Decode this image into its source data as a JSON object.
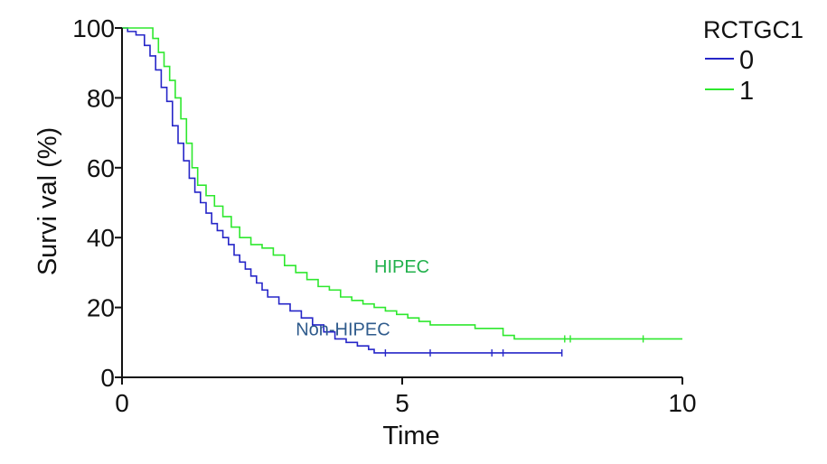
{
  "chart_data": {
    "type": "line",
    "step": true,
    "xlabel": "Time",
    "ylabel": "Survi val (%)",
    "xlim": [
      0,
      10
    ],
    "ylim": [
      0,
      100
    ],
    "x_ticks": [
      0,
      5,
      10
    ],
    "y_ticks": [
      0,
      20,
      40,
      60,
      80,
      100
    ],
    "grid": false,
    "legend": {
      "title": "RCTGC1",
      "position": "top-right",
      "entries": [
        {
          "label": "0",
          "color": "#2626c8"
        },
        {
          "label": "1",
          "color": "#2ee82e"
        }
      ]
    },
    "annotations": [
      {
        "text": "HIPEC",
        "series": "1",
        "color": "#22b14c",
        "x": 4.5,
        "y": 30
      },
      {
        "text": "Non-HIPEC",
        "series": "0",
        "color": "#2f5b8c",
        "x": 3.1,
        "y": 12
      }
    ],
    "series": [
      {
        "name": "0",
        "color": "#2626c8",
        "points": [
          [
            0,
            100
          ],
          [
            0.1,
            99
          ],
          [
            0.25,
            98
          ],
          [
            0.4,
            95
          ],
          [
            0.5,
            92
          ],
          [
            0.6,
            88
          ],
          [
            0.7,
            83
          ],
          [
            0.8,
            79
          ],
          [
            0.9,
            72
          ],
          [
            1.0,
            67
          ],
          [
            1.1,
            62
          ],
          [
            1.2,
            57
          ],
          [
            1.3,
            53
          ],
          [
            1.4,
            50
          ],
          [
            1.5,
            47
          ],
          [
            1.6,
            44
          ],
          [
            1.7,
            42
          ],
          [
            1.8,
            40
          ],
          [
            1.9,
            38
          ],
          [
            2.0,
            35
          ],
          [
            2.1,
            33
          ],
          [
            2.2,
            31
          ],
          [
            2.3,
            29
          ],
          [
            2.4,
            27
          ],
          [
            2.5,
            25
          ],
          [
            2.6,
            23
          ],
          [
            2.8,
            21
          ],
          [
            3.0,
            19
          ],
          [
            3.2,
            17
          ],
          [
            3.4,
            15
          ],
          [
            3.6,
            13
          ],
          [
            3.8,
            11
          ],
          [
            4.0,
            10
          ],
          [
            4.2,
            9
          ],
          [
            4.4,
            8
          ],
          [
            4.5,
            7
          ],
          [
            5.0,
            7
          ],
          [
            6.0,
            7
          ],
          [
            7.0,
            7
          ],
          [
            7.85,
            7
          ]
        ],
        "censor_x": [
          4.7,
          5.5,
          6.6,
          6.8,
          7.85
        ]
      },
      {
        "name": "1",
        "color": "#2ee82e",
        "points": [
          [
            0,
            100
          ],
          [
            0.5,
            100
          ],
          [
            0.55,
            97
          ],
          [
            0.65,
            93
          ],
          [
            0.75,
            89
          ],
          [
            0.85,
            85
          ],
          [
            0.95,
            80
          ],
          [
            1.05,
            74
          ],
          [
            1.15,
            67
          ],
          [
            1.25,
            60
          ],
          [
            1.35,
            55
          ],
          [
            1.5,
            52
          ],
          [
            1.65,
            49
          ],
          [
            1.8,
            46
          ],
          [
            1.95,
            43
          ],
          [
            2.1,
            40
          ],
          [
            2.3,
            38
          ],
          [
            2.5,
            37
          ],
          [
            2.7,
            35
          ],
          [
            2.9,
            32
          ],
          [
            3.1,
            30
          ],
          [
            3.3,
            28
          ],
          [
            3.5,
            26
          ],
          [
            3.7,
            25
          ],
          [
            3.9,
            23
          ],
          [
            4.1,
            22
          ],
          [
            4.3,
            21
          ],
          [
            4.5,
            20
          ],
          [
            4.7,
            19
          ],
          [
            4.9,
            18
          ],
          [
            5.1,
            17
          ],
          [
            5.3,
            16
          ],
          [
            5.5,
            15
          ],
          [
            6.0,
            15
          ],
          [
            6.3,
            14
          ],
          [
            6.8,
            12
          ],
          [
            7.0,
            11
          ],
          [
            8.0,
            11
          ],
          [
            9.0,
            11
          ],
          [
            10.0,
            11
          ]
        ],
        "censor_x": [
          7.9,
          8.0,
          9.3
        ]
      }
    ]
  }
}
